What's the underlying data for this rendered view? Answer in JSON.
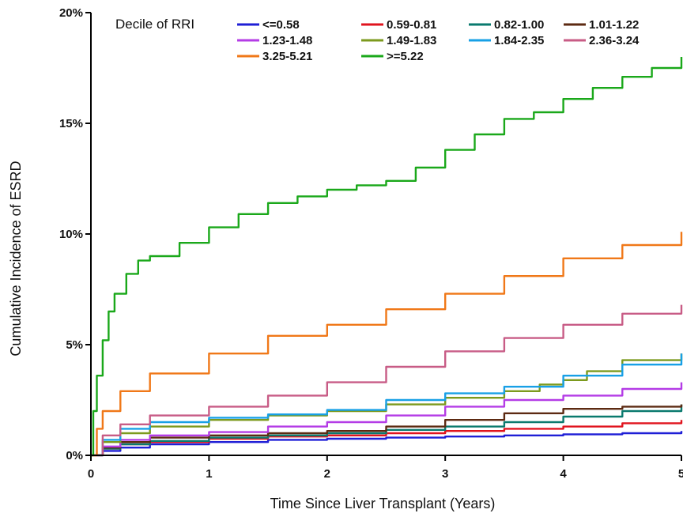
{
  "chart_data": {
    "type": "line",
    "title": "",
    "xlabel": "Time Since Liver Transplant (Years)",
    "ylabel": "Cumulative Incidence of ESRD",
    "xlim": [
      0,
      5
    ],
    "ylim": [
      0,
      20
    ],
    "x_ticks": [
      0,
      1,
      2,
      3,
      4,
      5
    ],
    "x_tick_labels": [
      "0",
      "1",
      "2",
      "3",
      "4",
      "5"
    ],
    "y_ticks": [
      0,
      5,
      10,
      15,
      20
    ],
    "y_tick_labels": [
      "0%",
      "5%",
      "10%",
      "15%",
      "20%"
    ],
    "grid": false,
    "legend": {
      "title": "Decile of RRI",
      "placement": "top-inside"
    },
    "series": [
      {
        "name": "<=0.58",
        "color": "#1f1fd6",
        "points": [
          [
            0,
            0
          ],
          [
            0.1,
            0.2
          ],
          [
            0.25,
            0.35
          ],
          [
            0.5,
            0.5
          ],
          [
            1,
            0.6
          ],
          [
            1.5,
            0.7
          ],
          [
            2,
            0.75
          ],
          [
            2.5,
            0.8
          ],
          [
            3,
            0.85
          ],
          [
            3.5,
            0.9
          ],
          [
            4,
            0.95
          ],
          [
            4.5,
            1.0
          ],
          [
            5,
            1.1
          ]
        ]
      },
      {
        "name": "0.59-0.81",
        "color": "#e0141e",
        "points": [
          [
            0,
            0
          ],
          [
            0.1,
            0.3
          ],
          [
            0.25,
            0.5
          ],
          [
            0.5,
            0.6
          ],
          [
            1,
            0.75
          ],
          [
            1.5,
            0.85
          ],
          [
            2,
            0.9
          ],
          [
            2.5,
            1.0
          ],
          [
            3,
            1.1
          ],
          [
            3.5,
            1.2
          ],
          [
            4,
            1.3
          ],
          [
            4.5,
            1.45
          ],
          [
            5,
            1.6
          ]
        ]
      },
      {
        "name": "0.82-1.00",
        "color": "#0a7a6e",
        "points": [
          [
            0,
            0
          ],
          [
            0.1,
            0.3
          ],
          [
            0.25,
            0.5
          ],
          [
            0.5,
            0.65
          ],
          [
            1,
            0.8
          ],
          [
            1.5,
            0.9
          ],
          [
            2,
            1.0
          ],
          [
            2.5,
            1.15
          ],
          [
            3,
            1.3
          ],
          [
            3.5,
            1.5
          ],
          [
            4,
            1.75
          ],
          [
            4.5,
            2.0
          ],
          [
            5,
            2.3
          ]
        ]
      },
      {
        "name": "1.01-1.22",
        "color": "#5c2a12",
        "points": [
          [
            0,
            0
          ],
          [
            0.1,
            0.35
          ],
          [
            0.25,
            0.6
          ],
          [
            0.5,
            0.8
          ],
          [
            1,
            0.9
          ],
          [
            1.5,
            1.0
          ],
          [
            2,
            1.1
          ],
          [
            2.5,
            1.3
          ],
          [
            3,
            1.6
          ],
          [
            3.5,
            1.9
          ],
          [
            4,
            2.1
          ],
          [
            4.5,
            2.2
          ],
          [
            5,
            2.3
          ]
        ]
      },
      {
        "name": "1.23-1.48",
        "color": "#b43ce6",
        "points": [
          [
            0,
            0
          ],
          [
            0.1,
            0.4
          ],
          [
            0.25,
            0.7
          ],
          [
            0.5,
            0.9
          ],
          [
            1,
            1.05
          ],
          [
            1.5,
            1.3
          ],
          [
            2,
            1.5
          ],
          [
            2.5,
            1.8
          ],
          [
            3,
            2.2
          ],
          [
            3.5,
            2.5
          ],
          [
            4,
            2.7
          ],
          [
            4.5,
            3.0
          ],
          [
            5,
            3.3
          ]
        ]
      },
      {
        "name": "1.49-1.83",
        "color": "#7c9a1e",
        "points": [
          [
            0,
            0
          ],
          [
            0.1,
            0.6
          ],
          [
            0.25,
            1.0
          ],
          [
            0.5,
            1.3
          ],
          [
            1,
            1.6
          ],
          [
            1.5,
            1.8
          ],
          [
            2,
            2.0
          ],
          [
            2.5,
            2.3
          ],
          [
            3,
            2.6
          ],
          [
            3.5,
            2.9
          ],
          [
            3.8,
            3.2
          ],
          [
            4,
            3.4
          ],
          [
            4.2,
            3.8
          ],
          [
            4.5,
            4.3
          ],
          [
            5,
            4.6
          ]
        ]
      },
      {
        "name": "1.84-2.35",
        "color": "#18a0e6",
        "points": [
          [
            0,
            0
          ],
          [
            0.1,
            0.7
          ],
          [
            0.25,
            1.2
          ],
          [
            0.5,
            1.5
          ],
          [
            1,
            1.7
          ],
          [
            1.5,
            1.85
          ],
          [
            2,
            2.05
          ],
          [
            2.5,
            2.5
          ],
          [
            3,
            2.8
          ],
          [
            3.5,
            3.1
          ],
          [
            4,
            3.6
          ],
          [
            4.5,
            4.1
          ],
          [
            5,
            4.6
          ]
        ]
      },
      {
        "name": "2.36-3.24",
        "color": "#c85c86",
        "points": [
          [
            0,
            0
          ],
          [
            0.1,
            0.9
          ],
          [
            0.25,
            1.4
          ],
          [
            0.5,
            1.8
          ],
          [
            1,
            2.2
          ],
          [
            1.5,
            2.7
          ],
          [
            2,
            3.3
          ],
          [
            2.5,
            4.0
          ],
          [
            3,
            4.7
          ],
          [
            3.5,
            5.3
          ],
          [
            4,
            5.9
          ],
          [
            4.5,
            6.4
          ],
          [
            5,
            6.8
          ]
        ]
      },
      {
        "name": "3.25-5.21",
        "color": "#f07818",
        "points": [
          [
            0,
            0
          ],
          [
            0.05,
            1.2
          ],
          [
            0.1,
            2.0
          ],
          [
            0.25,
            2.9
          ],
          [
            0.5,
            3.7
          ],
          [
            1,
            4.6
          ],
          [
            1.5,
            5.4
          ],
          [
            2,
            5.9
          ],
          [
            2.5,
            6.6
          ],
          [
            3,
            7.3
          ],
          [
            3.5,
            8.1
          ],
          [
            4,
            8.9
          ],
          [
            4.5,
            9.5
          ],
          [
            5,
            10.1
          ]
        ]
      },
      {
        "name": ">=5.22",
        "color": "#1aa81a",
        "points": [
          [
            0,
            0
          ],
          [
            0.02,
            2.0
          ],
          [
            0.05,
            3.6
          ],
          [
            0.1,
            5.2
          ],
          [
            0.15,
            6.5
          ],
          [
            0.2,
            7.3
          ],
          [
            0.3,
            8.2
          ],
          [
            0.4,
            8.8
          ],
          [
            0.5,
            9.0
          ],
          [
            0.75,
            9.6
          ],
          [
            1,
            10.3
          ],
          [
            1.25,
            10.9
          ],
          [
            1.5,
            11.4
          ],
          [
            1.75,
            11.7
          ],
          [
            2,
            12.0
          ],
          [
            2.25,
            12.2
          ],
          [
            2.5,
            12.4
          ],
          [
            2.75,
            13.0
          ],
          [
            3,
            13.8
          ],
          [
            3.25,
            14.5
          ],
          [
            3.5,
            15.2
          ],
          [
            3.75,
            15.5
          ],
          [
            4,
            16.1
          ],
          [
            4.25,
            16.6
          ],
          [
            4.5,
            17.1
          ],
          [
            4.75,
            17.5
          ],
          [
            5,
            18.0
          ]
        ]
      }
    ]
  }
}
